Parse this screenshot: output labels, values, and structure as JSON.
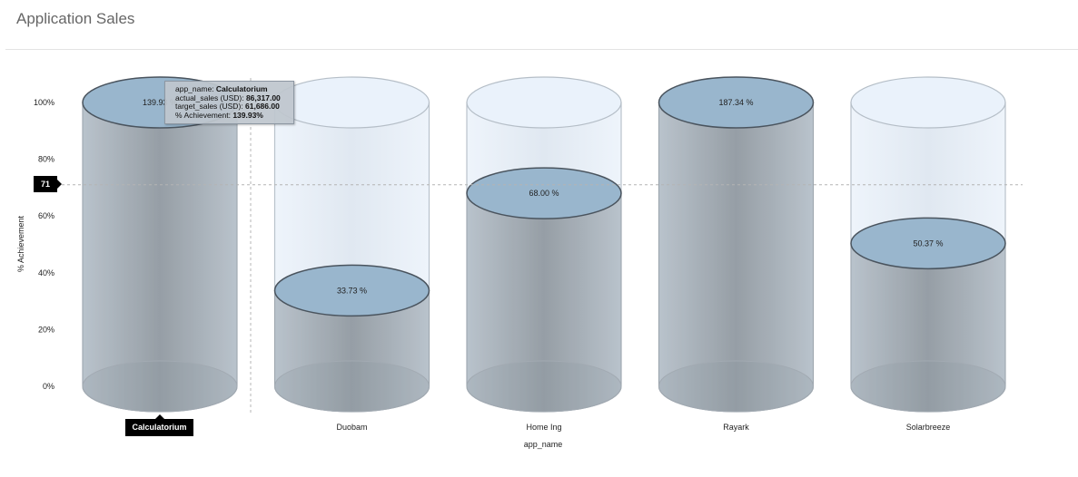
{
  "page": {
    "title": "Application Sales"
  },
  "chart_data": {
    "type": "bar",
    "style": "cylinder",
    "categories": [
      "Calculatorium",
      "Duobam",
      "Home Ing",
      "Rayark",
      "Solarbreeze"
    ],
    "values": [
      139.93,
      33.73,
      68.0,
      187.34,
      50.37
    ],
    "value_labels": [
      "139.93 %",
      "33.73 %",
      "68.00 %",
      "187.34 %",
      "50.37 %"
    ],
    "xlabel": "app_name",
    "ylabel": "% Achievement",
    "ylim": [
      0,
      100
    ],
    "yticks": [
      "0%",
      "20%",
      "40%",
      "60%",
      "80%",
      "100%"
    ],
    "reference_line": {
      "value": 71,
      "label": "71"
    },
    "highlighted_category": "Calculatorium",
    "colors": {
      "fill": "#a5b0ba",
      "top": "#99b6cd",
      "empty": "#e6eff8"
    }
  },
  "tooltip": {
    "rows": [
      {
        "key": "app_name: ",
        "value": "Calculatorium"
      },
      {
        "key": "actual_sales (USD): ",
        "value": "86,317.00"
      },
      {
        "key": "target_sales (USD): ",
        "value": "61,686.00"
      },
      {
        "key": "% Achievement: ",
        "value": "139.93%"
      }
    ]
  }
}
